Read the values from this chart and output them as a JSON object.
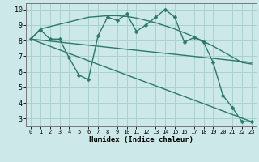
{
  "xlabel": "Humidex (Indice chaleur)",
  "bg_color": "#cce8e8",
  "grid_color": "#aad0d0",
  "line_color": "#2a7a6a",
  "x_ticks": [
    0,
    1,
    2,
    3,
    4,
    5,
    6,
    7,
    8,
    9,
    10,
    11,
    12,
    13,
    14,
    15,
    16,
    17,
    18,
    19,
    20,
    21,
    22,
    23
  ],
  "y_ticks": [
    3,
    4,
    5,
    6,
    7,
    8,
    9,
    10
  ],
  "ylim": [
    2.5,
    10.4
  ],
  "xlim": [
    -0.5,
    23.5
  ],
  "line1_x": [
    0,
    1,
    2,
    3,
    4,
    5,
    6,
    7,
    8,
    9,
    10,
    11,
    12,
    13,
    14,
    15,
    16,
    17,
    18,
    19,
    20,
    21,
    22,
    23
  ],
  "line1_y": [
    8.1,
    8.7,
    8.1,
    8.1,
    6.9,
    5.8,
    5.5,
    8.3,
    9.5,
    9.3,
    9.7,
    8.6,
    9.0,
    9.5,
    10.0,
    9.5,
    7.9,
    8.2,
    7.9,
    6.6,
    4.5,
    3.7,
    2.8,
    2.8
  ],
  "line2_x": [
    0,
    1,
    2,
    3,
    4,
    5,
    6,
    7,
    8,
    9,
    10,
    11,
    12,
    13,
    14,
    15,
    16,
    17,
    18,
    19,
    20,
    21,
    22,
    23
  ],
  "line2_y": [
    8.1,
    8.75,
    8.9,
    9.05,
    9.2,
    9.35,
    9.5,
    9.55,
    9.6,
    9.6,
    9.55,
    9.45,
    9.3,
    9.15,
    8.95,
    8.75,
    8.5,
    8.25,
    7.95,
    7.65,
    7.3,
    6.95,
    6.6,
    6.5
  ],
  "line3_x": [
    0,
    23
  ],
  "line3_y": [
    8.1,
    6.6
  ],
  "line4_x": [
    0,
    23
  ],
  "line4_y": [
    8.1,
    2.8
  ],
  "markersize": 2.5,
  "linewidth": 1.0
}
